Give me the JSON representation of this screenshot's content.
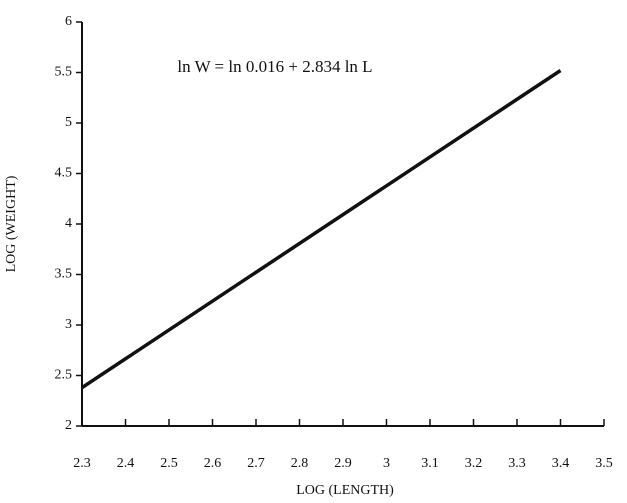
{
  "chart_data": {
    "type": "line",
    "annotation": "ln W = ln 0.016 + 2.834 ln L",
    "x_label": "LOG (LENGTH)",
    "y_label": "LOG (WEIGHT)",
    "x": [
      2.3,
      3.4
    ],
    "values": [
      2.38,
      5.52
    ],
    "color": "#111111",
    "xlim": [
      2.3,
      3.5
    ],
    "xticks": [
      2.3,
      2.4,
      2.5,
      2.6,
      2.7,
      2.8,
      2.9,
      3,
      3.1,
      3.2,
      3.3,
      3.4,
      3.5
    ],
    "ylim": [
      2,
      6
    ],
    "yticks": [
      2,
      2.5,
      3,
      3.5,
      4,
      4.5,
      5,
      5.5,
      6
    ]
  }
}
